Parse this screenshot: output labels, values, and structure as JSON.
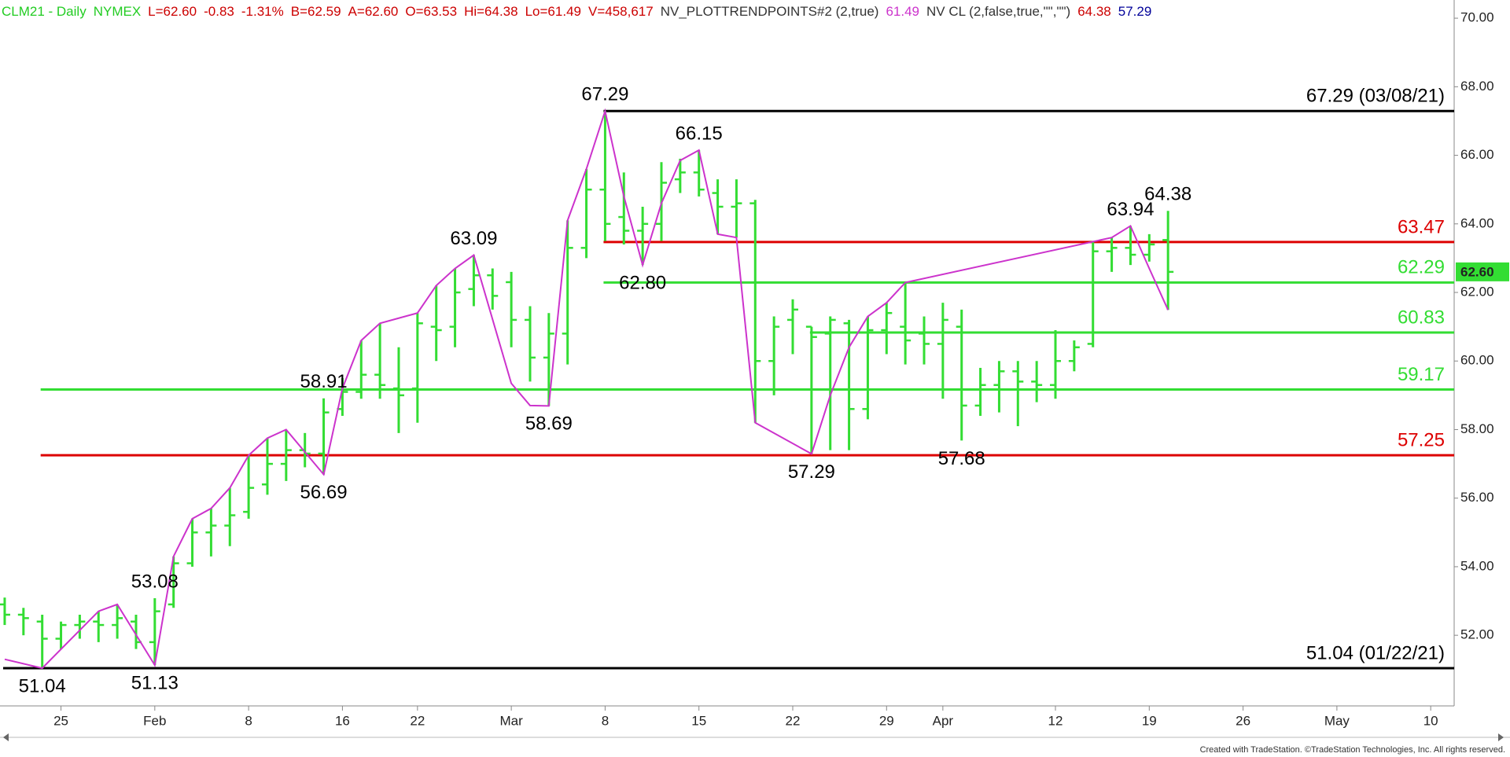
{
  "chart_data": {
    "type": "ohlc",
    "header": [
      {
        "text": "CLM21 - Daily",
        "color": "#22cc22"
      },
      {
        "text": "NYMEX",
        "color": "#22cc22"
      },
      {
        "text": "L=62.60",
        "color": "#cc0000"
      },
      {
        "text": "-0.83",
        "color": "#cc0000"
      },
      {
        "text": "-1.31%",
        "color": "#cc0000"
      },
      {
        "text": "B=62.59",
        "color": "#cc0000"
      },
      {
        "text": "A=62.60",
        "color": "#cc0000"
      },
      {
        "text": "O=63.53",
        "color": "#cc0000"
      },
      {
        "text": "Hi=64.38",
        "color": "#cc0000"
      },
      {
        "text": "Lo=61.49",
        "color": "#cc0000"
      },
      {
        "text": "V=458,617",
        "color": "#cc0000"
      },
      {
        "text": "NV_PLOTTRENDPOINTS#2 (2,true)",
        "color": "#333333"
      },
      {
        "text": "61.49",
        "color": "#cc33cc"
      },
      {
        "text": "NV CL (2,false,true,\"\",\"\")",
        "color": "#333333"
      },
      {
        "text": "64.38",
        "color": "#cc0000"
      },
      {
        "text": "57.29",
        "color": "#000099"
      }
    ],
    "color": "#33dd33",
    "ohlc": {
      "x": [
        "01/20/21",
        "01/21/21",
        "01/22/21",
        "01/25/21",
        "01/26/21",
        "01/27/21",
        "01/28/21",
        "01/29/21",
        "02/01/21",
        "02/02/21",
        "02/03/21",
        "02/04/21",
        "02/05/21",
        "02/08/21",
        "02/09/21",
        "02/10/21",
        "02/11/21",
        "02/12/21",
        "02/16/21",
        "02/17/21",
        "02/18/21",
        "02/19/21",
        "02/22/21",
        "02/23/21",
        "02/24/21",
        "02/25/21",
        "02/26/21",
        "03/01/21",
        "03/02/21",
        "03/03/21",
        "03/04/21",
        "03/05/21",
        "03/08/21",
        "03/09/21",
        "03/10/21",
        "03/11/21",
        "03/12/21",
        "03/15/21",
        "03/16/21",
        "03/17/21",
        "03/18/21",
        "03/19/21",
        "03/22/21",
        "03/23/21",
        "03/24/21",
        "03/25/21",
        "03/26/21",
        "03/29/21",
        "03/30/21",
        "03/31/21",
        "04/01/21",
        "04/05/21",
        "04/06/21",
        "04/07/21",
        "04/08/21",
        "04/09/21",
        "04/12/21",
        "04/13/21",
        "04/14/21",
        "04/15/21",
        "04/16/21",
        "04/19/21",
        "04/20/21"
      ],
      "open": [
        52.9,
        52.6,
        52.4,
        51.9,
        52.3,
        52.4,
        52.3,
        52.4,
        51.8,
        52.9,
        54.1,
        55.0,
        55.2,
        55.6,
        56.4,
        57.0,
        57.4,
        57.3,
        58.6,
        59.1,
        59.6,
        59.2,
        59.2,
        61.0,
        61.0,
        62.1,
        62.5,
        62.3,
        61.2,
        60.1,
        60.8,
        63.3,
        65.0,
        64.2,
        63.8,
        64.0,
        65.3,
        65.5,
        64.9,
        64.5,
        64.6,
        60.0,
        61.2,
        61.0,
        60.8,
        61.1,
        58.6,
        60.9,
        61.0,
        60.8,
        60.5,
        61.0,
        58.7,
        59.3,
        59.7,
        59.4,
        59.3,
        60.0,
        60.5,
        63.2,
        63.3,
        63.1,
        63.53
      ],
      "high": [
        53.1,
        52.8,
        52.6,
        52.4,
        52.6,
        52.7,
        52.9,
        52.6,
        53.08,
        54.3,
        55.4,
        55.7,
        56.3,
        57.25,
        57.75,
        58.0,
        57.9,
        58.91,
        59.5,
        60.6,
        61.1,
        60.4,
        61.4,
        62.2,
        62.7,
        63.09,
        62.7,
        62.6,
        61.6,
        61.4,
        64.1,
        65.6,
        67.29,
        65.5,
        64.5,
        65.8,
        65.9,
        66.15,
        65.3,
        65.3,
        64.7,
        61.3,
        61.8,
        61.0,
        61.3,
        61.2,
        61.3,
        61.7,
        62.29,
        61.3,
        61.7,
        61.5,
        59.8,
        60.0,
        60.0,
        60.0,
        60.9,
        60.6,
        63.5,
        63.6,
        63.94,
        63.7,
        64.38
      ],
      "low": [
        52.3,
        52.0,
        51.04,
        51.6,
        51.9,
        51.8,
        51.9,
        51.6,
        51.13,
        52.8,
        54.0,
        54.3,
        54.6,
        55.4,
        56.1,
        56.5,
        56.9,
        56.69,
        58.4,
        58.9,
        58.9,
        57.9,
        58.2,
        60.0,
        60.4,
        61.6,
        61.5,
        60.4,
        59.4,
        58.69,
        59.9,
        63.0,
        63.5,
        63.4,
        62.8,
        63.5,
        64.9,
        64.8,
        63.7,
        63.6,
        58.2,
        59.0,
        60.2,
        57.29,
        57.4,
        57.4,
        58.3,
        60.2,
        59.9,
        59.9,
        58.9,
        57.68,
        58.4,
        58.5,
        58.1,
        58.8,
        58.9,
        59.7,
        60.4,
        62.6,
        62.8,
        62.9,
        61.49
      ],
      "close": [
        52.6,
        52.5,
        51.9,
        52.3,
        52.4,
        52.3,
        52.5,
        51.8,
        52.7,
        54.1,
        55.0,
        55.2,
        55.5,
        56.3,
        57.0,
        57.4,
        57.3,
        58.5,
        59.1,
        59.6,
        59.3,
        59.0,
        61.1,
        60.9,
        62.0,
        62.5,
        61.9,
        61.2,
        60.1,
        60.8,
        63.3,
        65.0,
        64.0,
        63.8,
        64.0,
        65.2,
        65.5,
        65.0,
        64.5,
        64.6,
        60.0,
        61.0,
        61.5,
        60.7,
        61.2,
        58.6,
        60.9,
        61.4,
        60.6,
        60.5,
        61.2,
        58.7,
        59.3,
        59.7,
        59.4,
        59.3,
        60.0,
        60.4,
        63.2,
        63.3,
        63.1,
        63.4,
        62.6
      ]
    },
    "trend_points": {
      "color": "#cc33cc",
      "x": [
        "01/20/21",
        "01/22/21",
        "01/27/21",
        "01/28/21",
        "02/01/21",
        "02/02/21",
        "02/03/21",
        "02/04/21",
        "02/05/21",
        "02/08/21",
        "02/09/21",
        "02/10/21",
        "02/12/21",
        "02/16/21",
        "02/17/21",
        "02/18/21",
        "02/22/21",
        "02/23/21",
        "02/24/21",
        "02/25/21",
        "03/01/21",
        "03/02/21",
        "03/03/21",
        "03/04/21",
        "03/05/21",
        "03/08/21",
        "03/09/21",
        "03/10/21",
        "03/11/21",
        "03/12/21",
        "03/15/21",
        "03/16/21",
        "03/17/21",
        "03/18/21",
        "03/23/21",
        "03/24/21",
        "03/25/21",
        "03/26/21",
        "03/29/21",
        "03/30/21",
        "04/15/21",
        "04/16/21",
        "04/19/21",
        "04/20/21"
      ],
      "values": [
        51.3,
        51.04,
        52.7,
        52.9,
        51.13,
        54.3,
        55.4,
        55.7,
        56.3,
        57.25,
        57.75,
        58.0,
        56.69,
        59.2,
        60.6,
        61.1,
        61.4,
        62.2,
        62.7,
        63.09,
        59.35,
        58.7,
        58.69,
        64.1,
        65.6,
        67.29,
        64.8,
        62.8,
        64.6,
        65.85,
        66.15,
        63.7,
        63.6,
        58.2,
        57.29,
        59.0,
        60.4,
        61.3,
        61.7,
        62.29,
        63.6,
        63.94,
        62.7,
        61.49
      ]
    },
    "pivot_labels": [
      {
        "x": "01/22/21",
        "value": 51.04
      },
      {
        "x": "02/01/21",
        "value": 51.13
      },
      {
        "x": "02/01/21",
        "value": 53.08
      },
      {
        "x": "02/12/21",
        "value": 56.69
      },
      {
        "x": "02/12/21",
        "value": 58.91
      },
      {
        "x": "02/25/21",
        "value": 63.09
      },
      {
        "x": "03/03/21",
        "value": 58.69
      },
      {
        "x": "03/08/21",
        "value": 67.29
      },
      {
        "x": "03/10/21",
        "value": 62.8,
        "label": "62.80"
      },
      {
        "x": "03/15/21",
        "value": 66.15
      },
      {
        "x": "03/23/21",
        "value": 57.29
      },
      {
        "x": "04/05/21",
        "value": 57.68
      },
      {
        "x": "04/16/21",
        "value": 63.94
      },
      {
        "x": "04/20/21",
        "value": 64.38
      }
    ],
    "levels": [
      {
        "value": 67.29,
        "label": "67.29 (03/08/21)",
        "color": "#000000",
        "from": "03/08/21"
      },
      {
        "value": 63.47,
        "color": "#dd0000",
        "from": "03/08/21"
      },
      {
        "value": 62.29,
        "color": "#33dd33",
        "from": "03/08/21"
      },
      {
        "value": 60.83,
        "color": "#33dd33",
        "from": "03/23/21"
      },
      {
        "value": 59.17,
        "color": "#33dd33",
        "from": "01/22/21"
      },
      {
        "value": 57.25,
        "color": "#dd0000",
        "from": "01/22/21"
      },
      {
        "value": 51.04,
        "label": "51.04 (01/22/21)",
        "color": "#000000",
        "from": "01/20/21"
      }
    ],
    "last_price": {
      "value": 62.6,
      "label": "62.60",
      "color": "#33dd33"
    },
    "xlim": [
      "01/20/21",
      "05/11/21"
    ],
    "xticks": [
      {
        "value": "01/25/21",
        "label": "25"
      },
      {
        "value": "02/01/21",
        "label": "Feb"
      },
      {
        "value": "02/08/21",
        "label": "8"
      },
      {
        "value": "02/16/21",
        "label": "16"
      },
      {
        "value": "02/22/21",
        "label": "22"
      },
      {
        "value": "03/01/21",
        "label": "Mar"
      },
      {
        "value": "03/08/21",
        "label": "8"
      },
      {
        "value": "03/15/21",
        "label": "15"
      },
      {
        "value": "03/22/21",
        "label": "22"
      },
      {
        "value": "03/29/21",
        "label": "29"
      },
      {
        "value": "04/01/21",
        "label": "Apr"
      },
      {
        "value": "04/12/21",
        "label": "12"
      },
      {
        "value": "04/19/21",
        "label": "19"
      },
      {
        "value": "04/26/21",
        "label": "26"
      },
      {
        "value": "05/03/21",
        "label": "May"
      },
      {
        "value": "05/10/21",
        "label": "10"
      }
    ],
    "ylim": [
      49.94,
      70.53
    ],
    "yticks": [
      {
        "value": 52,
        "label": "52.00"
      },
      {
        "value": 54,
        "label": "54.00"
      },
      {
        "value": 56,
        "label": "56.00"
      },
      {
        "value": 58,
        "label": "58.00"
      },
      {
        "value": 60,
        "label": "60.00"
      },
      {
        "value": 62,
        "label": "62.00"
      },
      {
        "value": 64,
        "label": "64.00"
      },
      {
        "value": 66,
        "label": "66.00"
      },
      {
        "value": 68,
        "label": "68.00"
      },
      {
        "value": 70,
        "label": "70.00"
      }
    ],
    "grid": false
  },
  "footer": "Created with TradeStation. ©TradeStation Technologies, Inc. All rights reserved."
}
